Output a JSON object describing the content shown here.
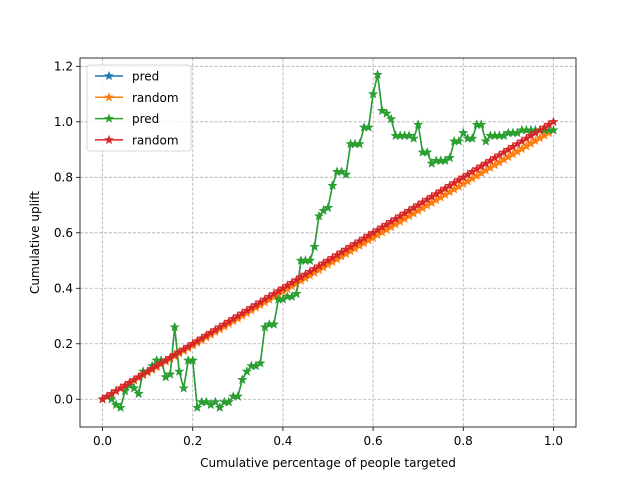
{
  "chart_data": {
    "type": "line",
    "title": "",
    "xlabel": "Cumulative percentage of people targeted",
    "ylabel": "Cumulative uplift",
    "xlim": [
      -0.05,
      1.05
    ],
    "ylim": [
      -0.1,
      1.23
    ],
    "xticks": [
      0.0,
      0.2,
      0.4,
      0.6,
      0.8,
      1.0
    ],
    "yticks": [
      0.0,
      0.2,
      0.4,
      0.6,
      0.8,
      1.0,
      1.2
    ],
    "xtick_labels": [
      "0.0",
      "0.2",
      "0.4",
      "0.6",
      "0.8",
      "1.0"
    ],
    "ytick_labels": [
      "0.0",
      "0.2",
      "0.4",
      "0.6",
      "0.8",
      "1.0",
      "1.2"
    ],
    "grid": true,
    "legend_position": "upper left",
    "colors": {
      "blue": "#1f77b4",
      "orange": "#ff7f0e",
      "green": "#2ca02c",
      "red": "#d62728"
    },
    "series": [
      {
        "name": "pred",
        "color": "#1f77b4",
        "marker": "star",
        "x": [
          0.0,
          0.01,
          0.02,
          0.03,
          0.04,
          0.05,
          0.06,
          0.07,
          0.08,
          0.09,
          0.1,
          0.11,
          0.12,
          0.13,
          0.14,
          0.15,
          0.16,
          0.17,
          0.18,
          0.19,
          0.2,
          0.21,
          0.22,
          0.23,
          0.24,
          0.25,
          0.26,
          0.27,
          0.28,
          0.29,
          0.3,
          0.31,
          0.32,
          0.33,
          0.34,
          0.35,
          0.36,
          0.37,
          0.38,
          0.39,
          0.4,
          0.41,
          0.42,
          0.43,
          0.44,
          0.45,
          0.46,
          0.47,
          0.48,
          0.49,
          0.5,
          0.51,
          0.52,
          0.53,
          0.54,
          0.55,
          0.56,
          0.57,
          0.58,
          0.59,
          0.6,
          0.61,
          0.62,
          0.63,
          0.64,
          0.65,
          0.66,
          0.67,
          0.68,
          0.69,
          0.7,
          0.71,
          0.72,
          0.73,
          0.74,
          0.75,
          0.76,
          0.77,
          0.78,
          0.79,
          0.8,
          0.81,
          0.82,
          0.83,
          0.84,
          0.85,
          0.86,
          0.87,
          0.88,
          0.89,
          0.9,
          0.91,
          0.92,
          0.93,
          0.94,
          0.95,
          0.96,
          0.97,
          0.98,
          0.99,
          1.0
        ],
        "y": [
          0.0,
          0.01,
          0.0,
          -0.02,
          -0.03,
          0.03,
          0.05,
          0.04,
          0.02,
          0.1,
          0.1,
          0.12,
          0.14,
          0.14,
          0.08,
          0.09,
          0.26,
          0.1,
          0.04,
          0.14,
          0.14,
          -0.03,
          -0.01,
          -0.01,
          -0.02,
          -0.01,
          -0.03,
          -0.01,
          -0.01,
          0.01,
          0.01,
          0.07,
          0.1,
          0.12,
          0.12,
          0.13,
          0.26,
          0.27,
          0.27,
          0.36,
          0.36,
          0.37,
          0.37,
          0.38,
          0.5,
          0.5,
          0.5,
          0.55,
          0.66,
          0.68,
          0.69,
          0.77,
          0.82,
          0.82,
          0.81,
          0.92,
          0.92,
          0.92,
          0.98,
          0.98,
          1.1,
          1.17,
          1.04,
          1.03,
          1.01,
          0.95,
          0.95,
          0.95,
          0.95,
          0.94,
          0.99,
          0.89,
          0.89,
          0.85,
          0.86,
          0.86,
          0.86,
          0.87,
          0.93,
          0.93,
          0.96,
          0.94,
          0.94,
          0.99,
          0.99,
          0.93,
          0.95,
          0.95,
          0.95,
          0.95,
          0.96,
          0.96,
          0.96,
          0.97,
          0.97,
          0.97,
          0.97,
          0.97,
          0.97,
          0.97,
          0.97
        ]
      },
      {
        "name": "random",
        "color": "#ff7f0e",
        "marker": "star",
        "x": [
          0.0,
          0.01,
          0.02,
          0.03,
          0.04,
          0.05,
          0.06,
          0.07,
          0.08,
          0.09,
          0.1,
          0.11,
          0.12,
          0.13,
          0.14,
          0.15,
          0.16,
          0.17,
          0.18,
          0.19,
          0.2,
          0.21,
          0.22,
          0.23,
          0.24,
          0.25,
          0.26,
          0.27,
          0.28,
          0.29,
          0.3,
          0.31,
          0.32,
          0.33,
          0.34,
          0.35,
          0.36,
          0.37,
          0.38,
          0.39,
          0.4,
          0.41,
          0.42,
          0.43,
          0.44,
          0.45,
          0.46,
          0.47,
          0.48,
          0.49,
          0.5,
          0.51,
          0.52,
          0.53,
          0.54,
          0.55,
          0.56,
          0.57,
          0.58,
          0.59,
          0.6,
          0.61,
          0.62,
          0.63,
          0.64,
          0.65,
          0.66,
          0.67,
          0.68,
          0.69,
          0.7,
          0.71,
          0.72,
          0.73,
          0.74,
          0.75,
          0.76,
          0.77,
          0.78,
          0.79,
          0.8,
          0.81,
          0.82,
          0.83,
          0.84,
          0.85,
          0.86,
          0.87,
          0.88,
          0.89,
          0.9,
          0.91,
          0.92,
          0.93,
          0.94,
          0.95,
          0.96,
          0.97,
          0.98,
          0.99,
          1.0
        ],
        "y": [
          0.0,
          0.0097,
          0.0194,
          0.0291,
          0.0388,
          0.0485,
          0.0582,
          0.0679,
          0.0776,
          0.0873,
          0.097,
          0.1067,
          0.1164,
          0.1261,
          0.1358,
          0.1455,
          0.1552,
          0.1649,
          0.1746,
          0.1843,
          0.194,
          0.2037,
          0.2134,
          0.2231,
          0.2328,
          0.2425,
          0.2522,
          0.2619,
          0.2716,
          0.2813,
          0.291,
          0.3007,
          0.3104,
          0.3201,
          0.3298,
          0.3395,
          0.3492,
          0.3589,
          0.3686,
          0.3783,
          0.388,
          0.3977,
          0.4074,
          0.4171,
          0.4268,
          0.4365,
          0.4462,
          0.4559,
          0.4656,
          0.4753,
          0.485,
          0.4947,
          0.5044,
          0.5141,
          0.5238,
          0.5335,
          0.5432,
          0.5529,
          0.5626,
          0.5723,
          0.582,
          0.5917,
          0.6014,
          0.6111,
          0.6208,
          0.6305,
          0.6402,
          0.6499,
          0.6596,
          0.6693,
          0.679,
          0.6887,
          0.6984,
          0.7081,
          0.7178,
          0.7275,
          0.7372,
          0.7469,
          0.7566,
          0.7663,
          0.776,
          0.7857,
          0.7954,
          0.8051,
          0.8148,
          0.8245,
          0.8342,
          0.8439,
          0.8536,
          0.8633,
          0.873,
          0.8827,
          0.8924,
          0.9021,
          0.9118,
          0.9215,
          0.9312,
          0.9409,
          0.9506,
          0.9603,
          0.97
        ]
      },
      {
        "name": "pred",
        "color": "#2ca02c",
        "marker": "star",
        "x": [
          0.0,
          0.01,
          0.02,
          0.03,
          0.04,
          0.05,
          0.06,
          0.07,
          0.08,
          0.09,
          0.1,
          0.11,
          0.12,
          0.13,
          0.14,
          0.15,
          0.16,
          0.17,
          0.18,
          0.19,
          0.2,
          0.21,
          0.22,
          0.23,
          0.24,
          0.25,
          0.26,
          0.27,
          0.28,
          0.29,
          0.3,
          0.31,
          0.32,
          0.33,
          0.34,
          0.35,
          0.36,
          0.37,
          0.38,
          0.39,
          0.4,
          0.41,
          0.42,
          0.43,
          0.44,
          0.45,
          0.46,
          0.47,
          0.48,
          0.49,
          0.5,
          0.51,
          0.52,
          0.53,
          0.54,
          0.55,
          0.56,
          0.57,
          0.58,
          0.59,
          0.6,
          0.61,
          0.62,
          0.63,
          0.64,
          0.65,
          0.66,
          0.67,
          0.68,
          0.69,
          0.7,
          0.71,
          0.72,
          0.73,
          0.74,
          0.75,
          0.76,
          0.77,
          0.78,
          0.79,
          0.8,
          0.81,
          0.82,
          0.83,
          0.84,
          0.85,
          0.86,
          0.87,
          0.88,
          0.89,
          0.9,
          0.91,
          0.92,
          0.93,
          0.94,
          0.95,
          0.96,
          0.97,
          0.98,
          0.99,
          1.0
        ],
        "y": [
          0.0,
          0.01,
          0.0,
          -0.02,
          -0.03,
          0.03,
          0.05,
          0.04,
          0.02,
          0.1,
          0.1,
          0.12,
          0.14,
          0.14,
          0.08,
          0.09,
          0.26,
          0.1,
          0.04,
          0.14,
          0.14,
          -0.03,
          -0.01,
          -0.01,
          -0.02,
          -0.01,
          -0.03,
          -0.01,
          -0.01,
          0.01,
          0.01,
          0.07,
          0.1,
          0.12,
          0.12,
          0.13,
          0.26,
          0.27,
          0.27,
          0.36,
          0.36,
          0.37,
          0.37,
          0.38,
          0.5,
          0.5,
          0.5,
          0.55,
          0.66,
          0.68,
          0.69,
          0.77,
          0.82,
          0.82,
          0.81,
          0.92,
          0.92,
          0.92,
          0.98,
          0.98,
          1.1,
          1.17,
          1.04,
          1.03,
          1.01,
          0.95,
          0.95,
          0.95,
          0.95,
          0.94,
          0.99,
          0.89,
          0.89,
          0.85,
          0.86,
          0.86,
          0.86,
          0.87,
          0.93,
          0.93,
          0.96,
          0.94,
          0.94,
          0.99,
          0.99,
          0.93,
          0.95,
          0.95,
          0.95,
          0.95,
          0.96,
          0.96,
          0.96,
          0.97,
          0.97,
          0.97,
          0.97,
          0.97,
          0.97,
          0.97,
          0.97
        ]
      },
      {
        "name": "random",
        "color": "#d62728",
        "marker": "star",
        "x": [
          0.0,
          0.01,
          0.02,
          0.03,
          0.04,
          0.05,
          0.06,
          0.07,
          0.08,
          0.09,
          0.1,
          0.11,
          0.12,
          0.13,
          0.14,
          0.15,
          0.16,
          0.17,
          0.18,
          0.19,
          0.2,
          0.21,
          0.22,
          0.23,
          0.24,
          0.25,
          0.26,
          0.27,
          0.28,
          0.29,
          0.3,
          0.31,
          0.32,
          0.33,
          0.34,
          0.35,
          0.36,
          0.37,
          0.38,
          0.39,
          0.4,
          0.41,
          0.42,
          0.43,
          0.44,
          0.45,
          0.46,
          0.47,
          0.48,
          0.49,
          0.5,
          0.51,
          0.52,
          0.53,
          0.54,
          0.55,
          0.56,
          0.57,
          0.58,
          0.59,
          0.6,
          0.61,
          0.62,
          0.63,
          0.64,
          0.65,
          0.66,
          0.67,
          0.68,
          0.69,
          0.7,
          0.71,
          0.72,
          0.73,
          0.74,
          0.75,
          0.76,
          0.77,
          0.78,
          0.79,
          0.8,
          0.81,
          0.82,
          0.83,
          0.84,
          0.85,
          0.86,
          0.87,
          0.88,
          0.89,
          0.9,
          0.91,
          0.92,
          0.93,
          0.94,
          0.95,
          0.96,
          0.97,
          0.98,
          0.99,
          1.0
        ],
        "y": [
          0.0,
          0.01,
          0.02,
          0.03,
          0.04,
          0.05,
          0.06,
          0.07,
          0.08,
          0.09,
          0.1,
          0.11,
          0.12,
          0.13,
          0.14,
          0.15,
          0.16,
          0.17,
          0.18,
          0.19,
          0.2,
          0.21,
          0.22,
          0.23,
          0.24,
          0.25,
          0.26,
          0.27,
          0.28,
          0.29,
          0.3,
          0.31,
          0.32,
          0.33,
          0.34,
          0.35,
          0.36,
          0.37,
          0.38,
          0.39,
          0.4,
          0.41,
          0.42,
          0.43,
          0.44,
          0.45,
          0.46,
          0.47,
          0.48,
          0.49,
          0.5,
          0.51,
          0.52,
          0.53,
          0.54,
          0.55,
          0.56,
          0.57,
          0.58,
          0.59,
          0.6,
          0.61,
          0.62,
          0.63,
          0.64,
          0.65,
          0.66,
          0.67,
          0.68,
          0.69,
          0.7,
          0.71,
          0.72,
          0.73,
          0.74,
          0.75,
          0.76,
          0.77,
          0.78,
          0.79,
          0.8,
          0.81,
          0.82,
          0.83,
          0.84,
          0.85,
          0.86,
          0.87,
          0.88,
          0.89,
          0.9,
          0.91,
          0.92,
          0.93,
          0.94,
          0.95,
          0.96,
          0.97,
          0.98,
          0.99,
          1.0
        ]
      }
    ]
  }
}
